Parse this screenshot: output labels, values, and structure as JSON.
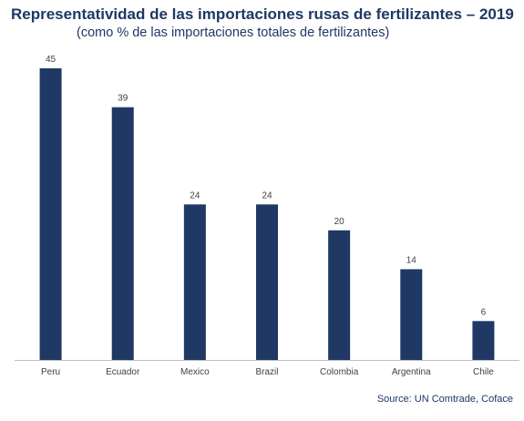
{
  "chart_data": {
    "type": "bar",
    "title": "Representatividad de las importaciones rusas de fertilizantes – 2019",
    "subtitle": "(como % de las importaciones totales de fertilizantes)",
    "categories": [
      "Peru",
      "Ecuador",
      "Mexico",
      "Brazil",
      "Colombia",
      "Argentina",
      "Chile"
    ],
    "values": [
      45,
      39,
      24,
      24,
      20,
      14,
      6
    ],
    "data_labels": [
      "45",
      "39",
      "24",
      "24",
      "20",
      "14",
      "6"
    ],
    "xlabel": "",
    "ylabel": "",
    "ylim": [
      0,
      45
    ],
    "grid": false,
    "legend": "none",
    "bar_color": "#1f3864",
    "source": "Source: UN Comtrade, Coface"
  }
}
